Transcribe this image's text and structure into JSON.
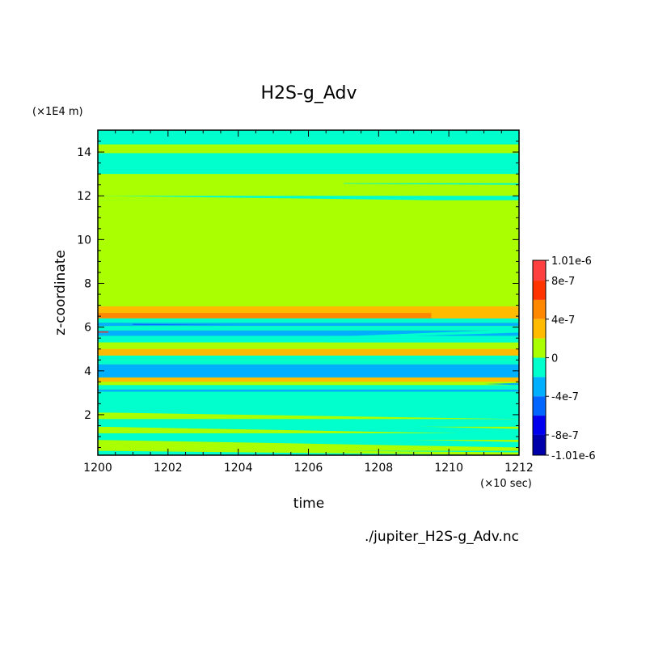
{
  "chart_data": {
    "type": "heatmap",
    "title": "H2S-g_Adv",
    "xlabel": "time",
    "ylabel": "z-coordinate",
    "x_unit": "(×10 sec)",
    "y_unit": "(×1E4 m)",
    "xlim": [
      1200,
      1212
    ],
    "ylim": [
      0.15,
      15
    ],
    "x_ticks": [
      "1200",
      "1202",
      "1204",
      "1206",
      "1208",
      "1210",
      "1212"
    ],
    "y_ticks": [
      "2",
      "4",
      "6",
      "8",
      "10",
      "12",
      "14"
    ],
    "source_file": "./jupiter_H2S-g_Adv.nc",
    "colorbar": {
      "labels": [
        "1.01e-6",
        "8e-7",
        "4e-7",
        "0",
        "-4e-7",
        "-8e-7",
        "-1.01e-6"
      ],
      "levels": [
        {
          "from": 8e-07,
          "to": 1.01e-06,
          "color": "#ff4040"
        },
        {
          "from": 6e-07,
          "to": 8e-07,
          "color": "#ff3300"
        },
        {
          "from": 4e-07,
          "to": 6e-07,
          "color": "#ff8800"
        },
        {
          "from": 2e-07,
          "to": 4e-07,
          "color": "#ffbb00"
        },
        {
          "from": 0,
          "to": 2e-07,
          "color": "#aaff00"
        },
        {
          "from": -2e-07,
          "to": 0,
          "color": "#00ffcc"
        },
        {
          "from": -4e-07,
          "to": -2e-07,
          "color": "#00b0ff"
        },
        {
          "from": -6e-07,
          "to": -4e-07,
          "color": "#0066ff"
        },
        {
          "from": -8e-07,
          "to": -6e-07,
          "color": "#0000ee"
        },
        {
          "from": -1.01e-06,
          "to": -8e-07,
          "color": "#0000aa"
        }
      ]
    },
    "background_color": "#aaff00",
    "bands": [
      {
        "z0": 14.35,
        "z1": 15.0,
        "color": "#00ffcc"
      },
      {
        "z0": 13.0,
        "z1": 13.95,
        "color": "#00ffcc"
      },
      {
        "z0": 11.8,
        "z1": 12.0,
        "color": "#00ffcc"
      },
      {
        "z0": 6.65,
        "z1": 6.95,
        "color": "#ffbb00"
      },
      {
        "z0": 6.4,
        "z1": 6.65,
        "color": "#ff8800"
      },
      {
        "z0": 6.2,
        "z1": 6.4,
        "color": "#00ffcc"
      },
      {
        "z0": 6.05,
        "z1": 6.2,
        "color": "#00b0ff"
      },
      {
        "z0": 5.85,
        "z1": 6.05,
        "color": "#00ffcc"
      },
      {
        "z0": 5.6,
        "z1": 5.85,
        "color": "#00b0ff"
      },
      {
        "z0": 5.3,
        "z1": 5.6,
        "color": "#00ffcc"
      },
      {
        "z0": 5.0,
        "z1": 5.3,
        "color": "#aaff00"
      },
      {
        "z0": 4.7,
        "z1": 5.0,
        "color": "#ffbb00"
      },
      {
        "z0": 4.5,
        "z1": 4.7,
        "color": "#00ffcc"
      },
      {
        "z0": 4.3,
        "z1": 4.5,
        "color": "#00ffcc"
      },
      {
        "z0": 3.7,
        "z1": 4.3,
        "color": "#00b0ff"
      },
      {
        "z0": 3.5,
        "z1": 3.7,
        "color": "#ffbb00"
      },
      {
        "z0": 3.35,
        "z1": 3.5,
        "color": "#aaff00"
      },
      {
        "z0": 3.15,
        "z1": 3.35,
        "color": "#00ffcc"
      },
      {
        "z0": 3.05,
        "z1": 3.15,
        "color": "#00b0ff"
      },
      {
        "z0": 2.1,
        "z1": 3.05,
        "color": "#00ffcc"
      },
      {
        "z0": 1.45,
        "z1": 1.8,
        "color": "#00ffcc"
      },
      {
        "z0": 0.85,
        "z1": 1.15,
        "color": "#00ffcc"
      },
      {
        "z0": 0.15,
        "z1": 0.35,
        "color": "#00ffcc"
      }
    ],
    "wedges": [
      {
        "color": "#aaff00",
        "points": [
          [
            1200,
            12.0
          ],
          [
            1209.5,
            11.8
          ],
          [
            1209.5,
            11.75
          ],
          [
            1200,
            11.8
          ]
        ]
      },
      {
        "color": "#00ffcc",
        "points": [
          [
            1207,
            12.55
          ],
          [
            1212,
            12.5
          ],
          [
            1212,
            12.58
          ],
          [
            1207,
            12.58
          ]
        ]
      },
      {
        "color": "#ffbb00",
        "points": [
          [
            1209.5,
            6.4
          ],
          [
            1212,
            6.4
          ],
          [
            1212,
            6.65
          ],
          [
            1209.5,
            6.65
          ]
        ]
      },
      {
        "color": "#00b0ff",
        "points": [
          [
            1200,
            6.05
          ],
          [
            1203,
            6.12
          ],
          [
            1206,
            6.15
          ],
          [
            1200,
            6.2
          ]
        ]
      },
      {
        "color": "#0066ff",
        "points": [
          [
            1201,
            6.1
          ],
          [
            1204,
            6.1
          ],
          [
            1201,
            6.15
          ]
        ]
      },
      {
        "color": "#00ffcc",
        "points": [
          [
            1206.5,
            5.55
          ],
          [
            1212,
            5.9
          ],
          [
            1212,
            5.75
          ],
          [
            1208,
            5.55
          ]
        ]
      },
      {
        "color": "#00ffcc",
        "points": [
          [
            1206.5,
            5.3
          ],
          [
            1212,
            5.55
          ],
          [
            1212,
            5.3
          ]
        ]
      },
      {
        "color": "#aaff00",
        "points": [
          [
            1206.5,
            5.05
          ],
          [
            1207.2,
            5.25
          ],
          [
            1207.5,
            5.05
          ]
        ]
      },
      {
        "color": "#00ffcc",
        "points": [
          [
            1200,
            2.1
          ],
          [
            1212,
            1.8
          ],
          [
            1212,
            2.3
          ],
          [
            1200,
            2.6
          ]
        ]
      },
      {
        "color": "#00ffcc",
        "points": [
          [
            1200,
            1.45
          ],
          [
            1212,
            1.1
          ],
          [
            1212,
            1.35
          ],
          [
            1200,
            1.8
          ]
        ]
      },
      {
        "color": "#00ffcc",
        "points": [
          [
            1200,
            0.85
          ],
          [
            1212,
            0.5
          ],
          [
            1212,
            0.75
          ],
          [
            1200,
            1.15
          ]
        ]
      },
      {
        "color": "#aaff00",
        "points": [
          [
            1200,
            0.35
          ],
          [
            1212,
            0.15
          ],
          [
            1212,
            0.28
          ],
          [
            1200,
            0.45
          ]
        ]
      },
      {
        "color": "#00b0ff",
        "points": [
          [
            1211,
            3.4
          ],
          [
            1212,
            3.45
          ],
          [
            1212,
            3.35
          ]
        ]
      },
      {
        "color": "#ff3300",
        "points": [
          [
            1200,
            5.8
          ],
          [
            1200.3,
            5.8
          ],
          [
            1200.3,
            5.75
          ],
          [
            1200,
            5.75
          ]
        ]
      }
    ]
  }
}
